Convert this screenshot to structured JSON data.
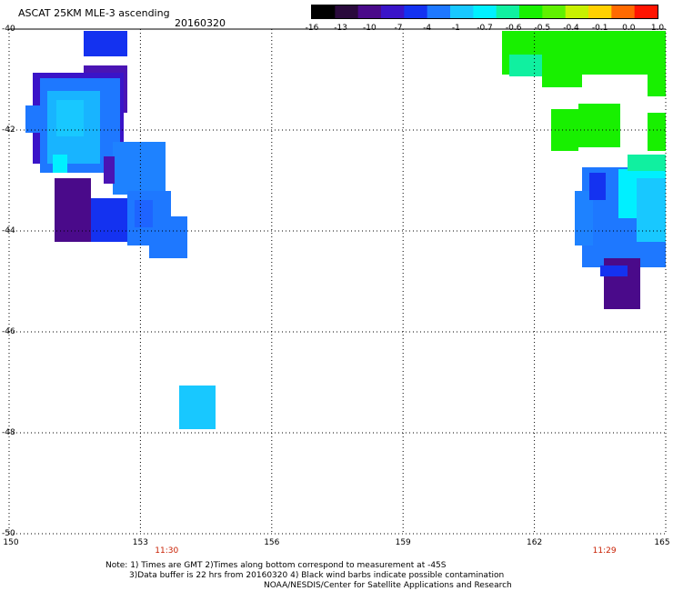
{
  "title": "ASCAT 25KM MLE-3 ascending",
  "date": "20160320",
  "colorbar": {
    "labels": [
      "-16",
      "-13",
      "-10",
      "-7",
      "-4",
      "-1",
      "-0.7",
      "-0.6",
      "-0.5",
      "-0.4",
      "-0.1",
      "0.0",
      "1.0"
    ],
    "colors": [
      "#000000",
      "#2a0a3c",
      "#4a0a8a",
      "#3a14c8",
      "#1432f0",
      "#1e78ff",
      "#18c8ff",
      "#00f0ff",
      "#10f0a0",
      "#18f000",
      "#60f000",
      "#c8f000",
      "#ffd000",
      "#ff6a00",
      "#ff1400"
    ]
  },
  "axes": {
    "lon_ticks": [
      "150",
      "153",
      "156",
      "159",
      "162",
      "165"
    ],
    "lat_ticks": [
      "-40",
      "-42",
      "-44",
      "-46",
      "-48",
      "-50"
    ],
    "lon_range": [
      150,
      165
    ],
    "lat_range": [
      -40,
      -50
    ],
    "grid": true
  },
  "times": [
    {
      "label": "11:30",
      "lon": 153.6
    },
    {
      "label": "11:29",
      "lon": 163.6
    }
  ],
  "notes": [
    "Note: 1) Times are GMT 2)Times along bottom correspond to measurement at -45S",
    "3)Data buffer is 22 hrs from 20160320 4) Black wind barbs indicate possible contamination",
    "NOAA/NESDIS/Center for Satellite Applications and Research"
  ]
}
